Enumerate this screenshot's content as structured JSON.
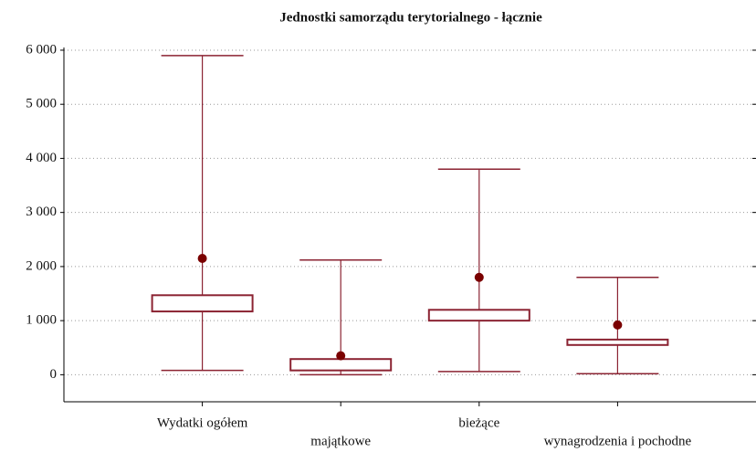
{
  "chart_data": {
    "type": "box",
    "title": "Jednostki samorządu terytorialnego - łącznie",
    "categories": [
      "Wydatki ogółem",
      "majątkowe",
      "bieżące",
      "wynagrodzenia i pochodne"
    ],
    "min": [
      80,
      0,
      60,
      20
    ],
    "box_low": [
      1170,
      80,
      1000,
      550
    ],
    "box_high": [
      1470,
      290,
      1200,
      650
    ],
    "max": [
      5900,
      2120,
      3800,
      1800
    ],
    "mean": [
      2150,
      350,
      1800,
      920
    ],
    "color": "#8b2332",
    "mean_color": "#7a0000",
    "ylim": [
      -500,
      6050
    ],
    "yticks": [
      0,
      {
        "value": 1000,
        "label": "1 000"
      },
      {
        "value": 2000,
        "label": "2 000"
      },
      {
        "value": 3000,
        "label": "3 000"
      },
      {
        "value": 4000,
        "label": "4 000"
      },
      {
        "value": 5000,
        "label": "5 000"
      },
      {
        "value": 6000,
        "label": "6 000"
      }
    ],
    "grid": true
  }
}
